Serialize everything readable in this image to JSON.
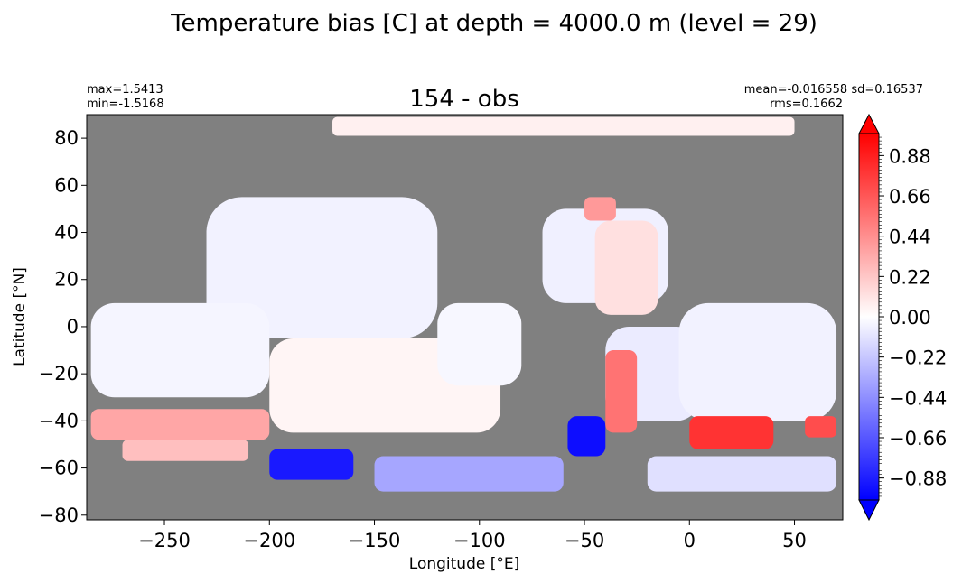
{
  "chart_data": {
    "type": "heatmap",
    "suptitle": "Temperature bias [C] at depth = 4000.0 m (level = 29)",
    "title": "154 - obs",
    "xlabel": "Longitude [°E]",
    "ylabel": "Latitude [°N]",
    "xlim": [
      -287,
      73
    ],
    "ylim": [
      -82,
      90
    ],
    "xticks": [
      -250,
      -200,
      -150,
      -100,
      -50,
      0,
      50
    ],
    "xtick_labels": [
      "−250",
      "−200",
      "−150",
      "−100",
      "−50",
      "0",
      "50"
    ],
    "yticks": [
      -80,
      -60,
      -40,
      -20,
      0,
      20,
      40,
      60,
      80
    ],
    "ytick_labels": [
      "−80",
      "−60",
      "−40",
      "−20",
      "0",
      "20",
      "40",
      "60",
      "80"
    ],
    "stats_left": [
      "max=1.5413",
      "min=-1.5168"
    ],
    "stats_right": [
      "mean=-0.016558 sd=0.16537",
      "rms=0.1662"
    ],
    "colorbar": {
      "min": -1.0,
      "max": 1.0,
      "extend": "both",
      "colormap": "bwr",
      "ticks": [
        -0.88,
        -0.66,
        -0.44,
        -0.22,
        0.0,
        0.22,
        0.44,
        0.66,
        0.88
      ],
      "tick_labels": [
        "−0.88",
        "−0.66",
        "−0.44",
        "−0.22",
        "0.00",
        "0.22",
        "0.44",
        "0.66",
        "0.88"
      ]
    },
    "land_color": "#808080",
    "features": [
      {
        "name": "arctic-strip",
        "lon": [
          -170,
          50
        ],
        "lat": [
          81,
          89
        ],
        "bias": 0.06
      },
      {
        "name": "north-pacific",
        "lon": [
          -230,
          -120
        ],
        "lat": [
          -5,
          55
        ],
        "bias": -0.05
      },
      {
        "name": "west-pacific",
        "lon": [
          -285,
          -200
        ],
        "lat": [
          -30,
          10
        ],
        "bias": -0.04
      },
      {
        "name": "south-pacific",
        "lon": [
          -200,
          -90
        ],
        "lat": [
          -45,
          -5
        ],
        "bias": 0.04
      },
      {
        "name": "eastern-pacific",
        "lon": [
          -120,
          -80
        ],
        "lat": [
          -25,
          10
        ],
        "bias": -0.03
      },
      {
        "name": "north-atlantic",
        "lon": [
          -70,
          -10
        ],
        "lat": [
          10,
          50
        ],
        "bias": -0.06
      },
      {
        "name": "east-atlantic",
        "lon": [
          -45,
          -15
        ],
        "lat": [
          5,
          45
        ],
        "bias": 0.12
      },
      {
        "name": "south-atlantic",
        "lon": [
          -40,
          5
        ],
        "lat": [
          -40,
          0
        ],
        "bias": -0.08
      },
      {
        "name": "indian-ocean",
        "lon": [
          -5,
          70
        ],
        "lat": [
          -40,
          10
        ],
        "bias": -0.05
      },
      {
        "name": "tasman-sea-warm",
        "lon": [
          -285,
          -200
        ],
        "lat": [
          -48,
          -35
        ],
        "bias": 0.35
      },
      {
        "name": "south-tasman-warm",
        "lon": [
          -270,
          -210
        ],
        "lat": [
          -57,
          -48
        ],
        "bias": 0.25
      },
      {
        "name": "ross-sea-cold",
        "lon": [
          -200,
          -160
        ],
        "lat": [
          -65,
          -52
        ],
        "bias": -0.9
      },
      {
        "name": "pacific-sector-cold",
        "lon": [
          -150,
          -60
        ],
        "lat": [
          -70,
          -55
        ],
        "bias": -0.35
      },
      {
        "name": "argentine-basin-cold",
        "lon": [
          -58,
          -40
        ],
        "lat": [
          -55,
          -38
        ],
        "bias": -0.95
      },
      {
        "name": "brazil-margin-warm",
        "lon": [
          -40,
          -25
        ],
        "lat": [
          -45,
          -10
        ],
        "bias": 0.55
      },
      {
        "name": "agulhas-warm",
        "lon": [
          0,
          40
        ],
        "lat": [
          -52,
          -38
        ],
        "bias": 0.8
      },
      {
        "name": "kerguelen-warm",
        "lon": [
          55,
          70
        ],
        "lat": [
          -47,
          -38
        ],
        "bias": 0.7
      },
      {
        "name": "weddell-enderby",
        "lon": [
          -20,
          70
        ],
        "lat": [
          -70,
          -55
        ],
        "bias": -0.12
      },
      {
        "name": "subpolar-atlantic-warm",
        "lon": [
          -50,
          -35
        ],
        "lat": [
          45,
          55
        ],
        "bias": 0.4
      }
    ]
  }
}
